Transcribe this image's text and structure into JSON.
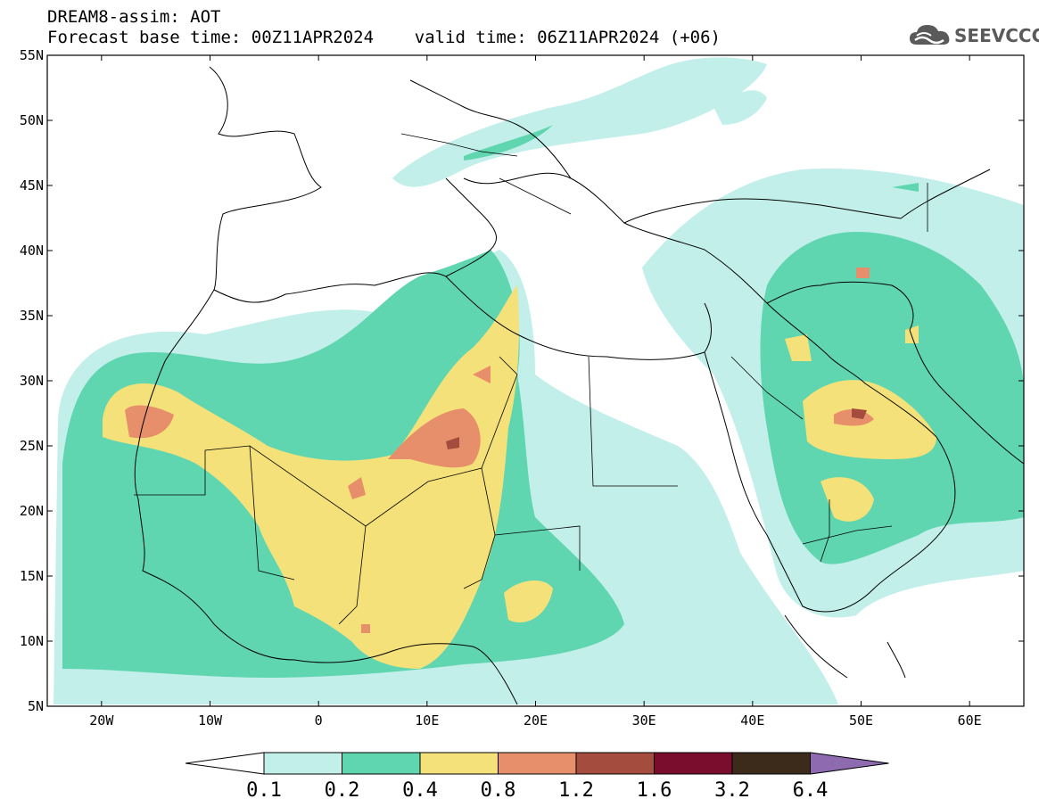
{
  "header": {
    "line1": "DREAM8-assim: AOT",
    "line2": "Forecast base time: 00Z11APR2024    valid time: 06Z11APR2024 (+06)"
  },
  "logo": {
    "text": "SEEVCCC",
    "icon": "cloud-icon"
  },
  "map": {
    "lat_labels": [
      "55N",
      "50N",
      "45N",
      "40N",
      "35N",
      "30N",
      "25N",
      "20N",
      "15N",
      "10N",
      "5N"
    ],
    "lon_labels": [
      "20W",
      "10W",
      "0",
      "10E",
      "20E",
      "30E",
      "40E",
      "50E",
      "60E"
    ],
    "lat_range": [
      5,
      55
    ],
    "lon_range": [
      -25,
      65
    ]
  },
  "colorbar": {
    "levels": [
      "0.1",
      "0.2",
      "0.4",
      "0.8",
      "1.2",
      "1.6",
      "3.2",
      "6.4"
    ],
    "colors": [
      "#c2efea",
      "#5fd6b0",
      "#f4e17a",
      "#e68f6a",
      "#a44c3e",
      "#7a0d2e",
      "#3c2a1a",
      "#8e6bb0"
    ],
    "low_end_color": "#ffffff"
  }
}
